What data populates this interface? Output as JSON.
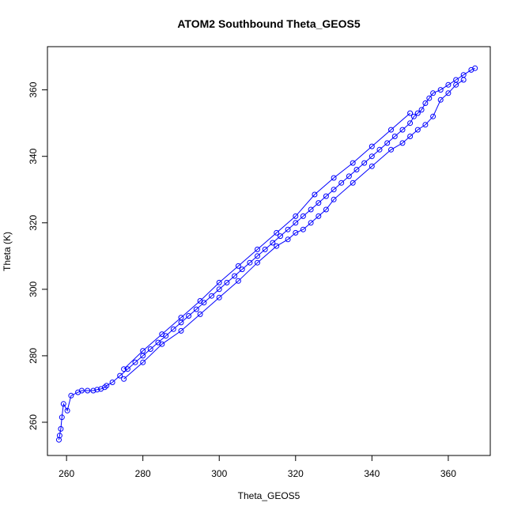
{
  "chart_data": {
    "type": "scatter",
    "title": "ATOM2 Southbound Theta_GEOS5",
    "xlabel": "Theta_GEOS5",
    "ylabel": "Theta (K)",
    "xlim": [
      255,
      371
    ],
    "ylim": [
      250,
      373
    ],
    "x_ticks": [
      260,
      280,
      300,
      320,
      340,
      360
    ],
    "y_ticks": [
      260,
      280,
      300,
      320,
      340,
      360
    ],
    "grid": false,
    "legend": "none",
    "marker": "open-circle",
    "color": "#0000ff",
    "series": [
      {
        "x": [
          258.0,
          258.2,
          258.5,
          258.8,
          259.2,
          260.2,
          261.2,
          263.0,
          264.0,
          265.5,
          267.0,
          268.0,
          269.0,
          270.0,
          270.5,
          272,
          274,
          276,
          278,
          280,
          282,
          284,
          286,
          288,
          290,
          292,
          294,
          296,
          298,
          300,
          302,
          304,
          306,
          308,
          310,
          312,
          314,
          316,
          318,
          320,
          322,
          324,
          326,
          328,
          330,
          332,
          334,
          336,
          338,
          340,
          342,
          344,
          346,
          348,
          350,
          351,
          352,
          353,
          354,
          355,
          356,
          358,
          360,
          362,
          364,
          366,
          367
        ],
        "y": [
          254.7,
          256.0,
          258.0,
          261.5,
          265.5,
          263.5,
          268.0,
          269.0,
          269.5,
          269.5,
          269.5,
          269.8,
          270.0,
          270.5,
          271.0,
          272,
          274,
          276,
          278,
          280,
          282,
          284,
          286,
          288,
          290,
          292,
          294,
          296,
          298,
          300,
          302,
          304,
          306,
          308,
          310,
          312,
          314,
          316,
          318,
          320,
          322,
          324,
          326,
          328,
          330,
          332,
          334,
          336,
          338,
          340,
          342,
          344,
          346,
          348,
          350,
          352,
          353,
          354,
          356,
          357.5,
          359,
          360,
          361.5,
          363,
          364.5,
          366,
          366.5
        ]
      },
      {
        "x": [
          275,
          280,
          285,
          290,
          295,
          300,
          305,
          310,
          315,
          318,
          320,
          322,
          324,
          326,
          328,
          330,
          335,
          340,
          345,
          348,
          350,
          352,
          354,
          356,
          358,
          360,
          362,
          364
        ],
        "y": [
          273,
          278,
          283.5,
          287.5,
          292.5,
          297.5,
          302.5,
          308,
          313,
          315,
          317,
          318,
          320,
          322,
          324,
          327,
          332,
          337,
          342,
          344,
          346,
          348,
          349.5,
          352,
          357,
          359,
          361.5,
          363
        ]
      },
      {
        "x": [
          275,
          280,
          285,
          290,
          295,
          300,
          305,
          310,
          315,
          320,
          325,
          330,
          335,
          340,
          345,
          350
        ],
        "y": [
          276,
          281.5,
          286.5,
          291.5,
          296.5,
          302,
          307,
          312,
          317,
          322,
          328.5,
          333.5,
          338,
          343,
          348,
          353
        ]
      }
    ]
  }
}
